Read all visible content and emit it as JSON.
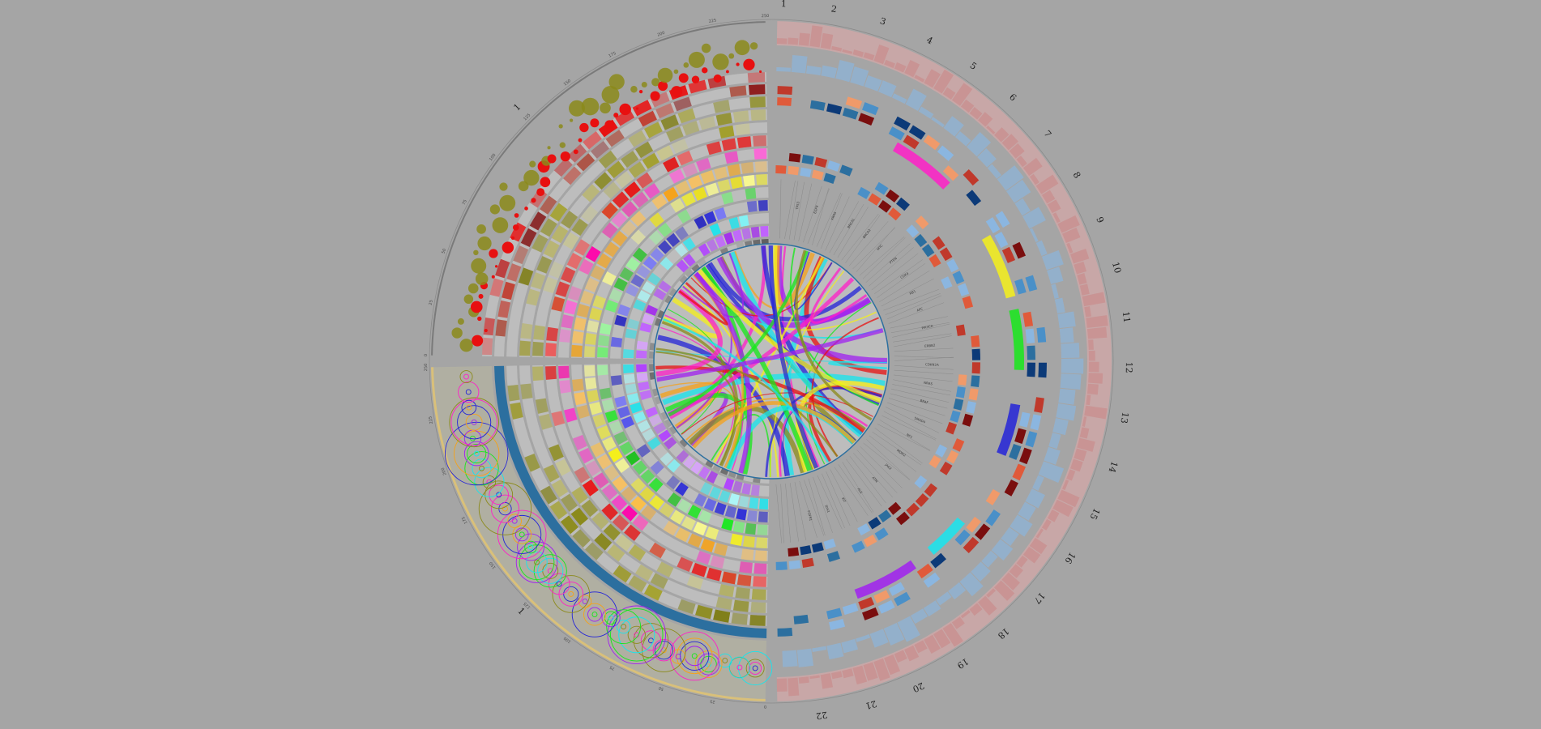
{
  "chart_data": {
    "type": "circos",
    "title": "",
    "chromosome_labels": [
      "1",
      "2",
      "3",
      "4",
      "5",
      "6",
      "7",
      "8",
      "9",
      "10",
      "11",
      "12",
      "13",
      "14",
      "15",
      "16",
      "17",
      "18",
      "19",
      "20",
      "21",
      "22"
    ],
    "left_top_segment_label": "1",
    "left_bottom_segment_label": "1",
    "tick_labels": [
      "0",
      "25",
      "50",
      "75",
      "100",
      "125",
      "150",
      "175",
      "200",
      "225",
      "250"
    ],
    "gene_label_sample": [
      "TP53",
      "EGFR",
      "KRAS",
      "BRCA1",
      "BRCA2",
      "MYC",
      "PTEN",
      "CDK4",
      "RB1",
      "APC",
      "PIK3CA",
      "ERBB2",
      "CDKN2A",
      "NRAS",
      "BRAF",
      "SMAD4",
      "NF1",
      "MDM2",
      "JAK2",
      "ATM",
      "ALK",
      "KIT",
      "IDH1",
      "FGFR1"
    ],
    "colors": {
      "background": "#a5a5a5",
      "olive": "#8b8a1a",
      "red": "#e81010",
      "magenta": "#ff1fc8",
      "orange": "#f5a21a",
      "yellow": "#f5f01a",
      "green": "#16e81a",
      "blue": "#2323d8",
      "cyan": "#16e5ee",
      "purple": "#a020f0",
      "steel_blue": "#2c6f9f",
      "dark_red": "#7a0e0e",
      "navy": "#0c3a78",
      "pink_fill": "#e6a9a9"
    }
  }
}
